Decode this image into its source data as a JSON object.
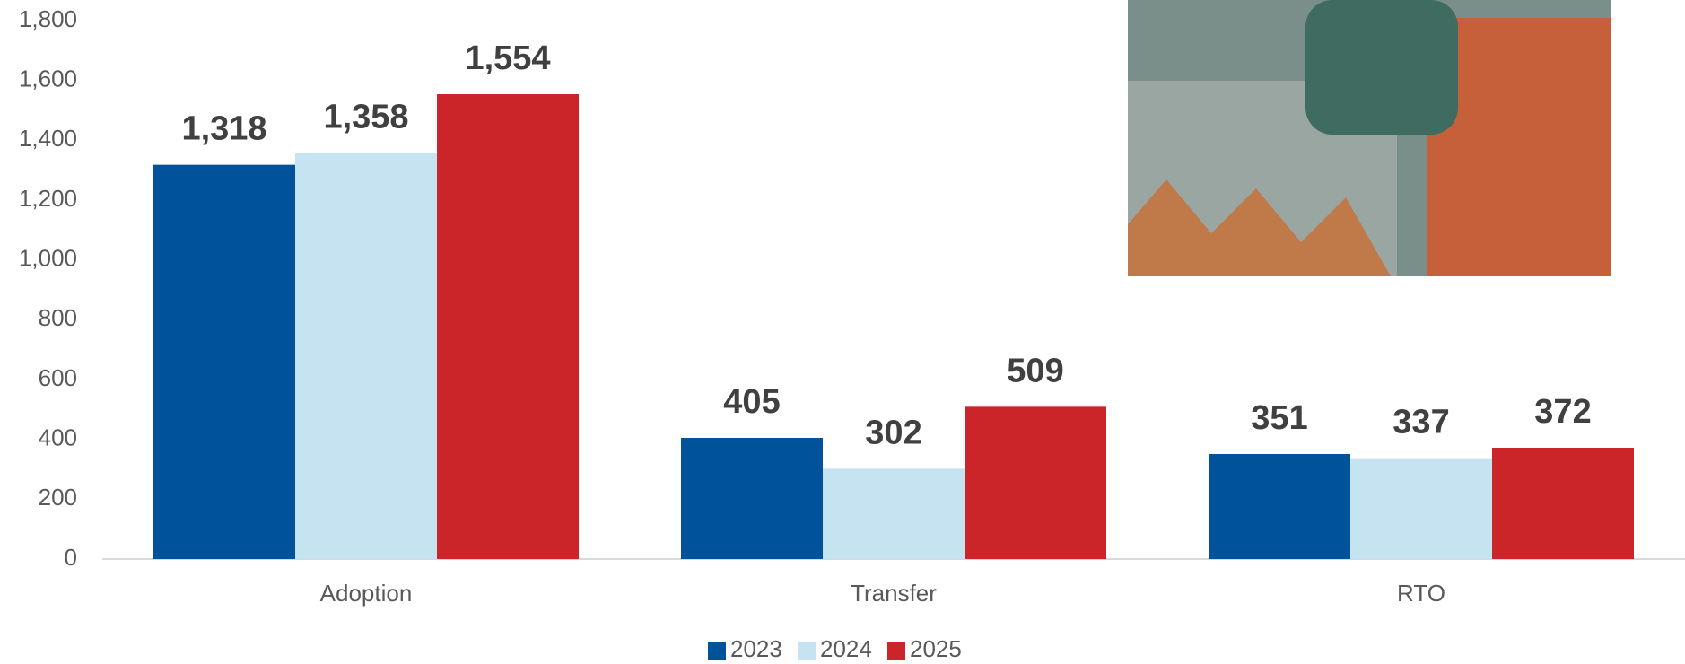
{
  "chart_data": {
    "type": "bar",
    "categories": [
      "Adoption",
      "Transfer",
      "RTO"
    ],
    "series": [
      {
        "name": "2023",
        "color": "#00539b",
        "values": [
          1318,
          405,
          351
        ],
        "value_labels": [
          "1,318",
          "405",
          "351"
        ]
      },
      {
        "name": "2024",
        "color": "#c5e3f0",
        "values": [
          1358,
          302,
          337
        ],
        "value_labels": [
          "1,358",
          "302",
          "337"
        ]
      },
      {
        "name": "2025",
        "color": "#cc2529",
        "values": [
          1554,
          509,
          372
        ],
        "value_labels": [
          "1,554",
          "509",
          "372"
        ]
      }
    ],
    "ylim": [
      0,
      1800
    ],
    "yticks": [
      0,
      200,
      400,
      600,
      800,
      {
        "value": 1000,
        "label": "1,000"
      },
      {
        "value": 1200,
        "label": "1,200"
      },
      {
        "value": 1400,
        "label": "1,400"
      },
      {
        "value": 1600,
        "label": "1,600"
      },
      {
        "value": 1800,
        "label": "1,800"
      }
    ],
    "legend": "bottom"
  }
}
